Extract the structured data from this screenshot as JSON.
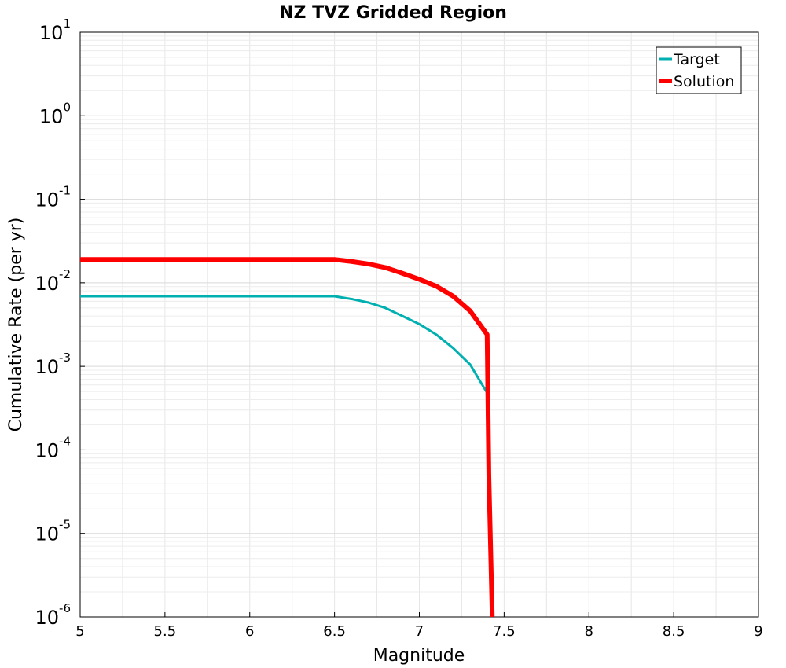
{
  "chart_data": {
    "type": "line",
    "title": "NZ TVZ Gridded Region",
    "xlabel": "Magnitude",
    "ylabel": "Cumulative Rate (per yr)",
    "xlim": [
      5,
      9
    ],
    "ylim": [
      1e-06,
      10
    ],
    "yscale": "log",
    "grid": true,
    "legend_position": "top-right",
    "x_ticks": [
      "5",
      "5.5",
      "6",
      "6.5",
      "7",
      "7.5",
      "8",
      "8.5",
      "9"
    ],
    "y_ticks": [
      {
        "base": "10",
        "exp": "1"
      },
      {
        "base": "10",
        "exp": "0"
      },
      {
        "base": "10",
        "exp": "-1"
      },
      {
        "base": "10",
        "exp": "-2"
      },
      {
        "base": "10",
        "exp": "-3"
      },
      {
        "base": "10",
        "exp": "-4"
      },
      {
        "base": "10",
        "exp": "-5"
      },
      {
        "base": "10",
        "exp": "-6"
      }
    ],
    "series": [
      {
        "name": "Target",
        "color": "#00b0b0",
        "x": [
          5.0,
          5.5,
          6.0,
          6.5,
          6.6,
          6.7,
          6.8,
          6.9,
          7.0,
          7.1,
          7.2,
          7.3,
          7.4
        ],
        "y": [
          0.0069,
          0.0069,
          0.0069,
          0.0069,
          0.0064,
          0.0058,
          0.005,
          0.004,
          0.0032,
          0.0024,
          0.00165,
          0.00105,
          0.00048
        ]
      },
      {
        "name": "Solution",
        "color": "#ff0000",
        "x": [
          5.0,
          5.5,
          6.0,
          6.5,
          6.6,
          6.7,
          6.8,
          6.9,
          7.0,
          7.1,
          7.2,
          7.3,
          7.4,
          7.41,
          7.43
        ],
        "y": [
          0.019,
          0.019,
          0.019,
          0.019,
          0.018,
          0.0168,
          0.0152,
          0.013,
          0.011,
          0.0091,
          0.0069,
          0.0046,
          0.0024,
          5e-05,
          1e-06
        ]
      }
    ]
  }
}
